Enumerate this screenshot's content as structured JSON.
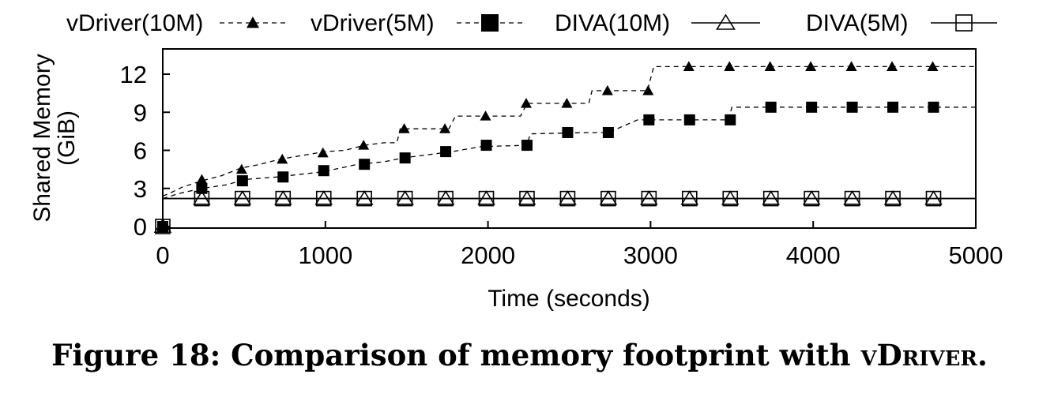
{
  "caption": {
    "label": "Figure 18:",
    "text": "Comparison of memory footprint with",
    "system": "vDriver",
    "end": "."
  },
  "chart_data": {
    "type": "line",
    "title": "",
    "xlabel": "Time (seconds)",
    "ylabel_line1": "Shared Memory",
    "ylabel_line2": "(GiB)",
    "xlim": [
      -20,
      5000
    ],
    "ylim": [
      0,
      13.8
    ],
    "xticks": [
      0,
      1000,
      2000,
      3000,
      4000,
      5000
    ],
    "xtick_labels": [
      "0",
      "1000",
      "2000",
      "3000",
      "4000",
      "5000"
    ],
    "yticks": [
      0,
      3,
      6,
      9,
      12
    ],
    "ytick_labels": [
      "0",
      "3",
      "6",
      "9",
      "12"
    ],
    "grid": false,
    "legend_position": "top, outside",
    "series": [
      {
        "name": "vDriver(10M)",
        "marker": "filled-triangle",
        "line": "dashed",
        "line_points": [
          [
            0,
            2.4
          ],
          [
            40,
            2.6
          ],
          [
            120,
            3.1
          ],
          [
            240,
            3.6
          ],
          [
            360,
            4.0
          ],
          [
            480,
            4.6
          ],
          [
            600,
            4.9
          ],
          [
            720,
            5.3
          ],
          [
            860,
            5.6
          ],
          [
            1000,
            5.9
          ],
          [
            1120,
            6.0
          ],
          [
            1240,
            6.4
          ],
          [
            1360,
            6.6
          ],
          [
            1440,
            6.6
          ],
          [
            1460,
            7.7
          ],
          [
            1760,
            7.7
          ],
          [
            1800,
            8.7
          ],
          [
            2200,
            8.7
          ],
          [
            2240,
            9.7
          ],
          [
            2620,
            9.7
          ],
          [
            2640,
            10.7
          ],
          [
            2980,
            10.7
          ],
          [
            3020,
            12.6
          ],
          [
            5000,
            12.6
          ]
        ],
        "marker_points": [
          [
            0,
            0
          ],
          [
            240,
            3.7
          ],
          [
            485,
            4.5
          ],
          [
            735,
            5.3
          ],
          [
            985,
            5.8
          ],
          [
            1235,
            6.4
          ],
          [
            1485,
            7.7
          ],
          [
            1735,
            7.7
          ],
          [
            1985,
            8.7
          ],
          [
            2235,
            9.7
          ],
          [
            2485,
            9.7
          ],
          [
            2735,
            10.7
          ],
          [
            2985,
            10.7
          ],
          [
            3235,
            12.6
          ],
          [
            3485,
            12.6
          ],
          [
            3735,
            12.6
          ],
          [
            3985,
            12.6
          ],
          [
            4235,
            12.6
          ],
          [
            4485,
            12.6
          ],
          [
            4735,
            12.6
          ]
        ]
      },
      {
        "name": "vDriver(5M)",
        "marker": "filled-square",
        "line": "dashed",
        "line_points": [
          [
            0,
            2.2
          ],
          [
            100,
            2.6
          ],
          [
            240,
            3.0
          ],
          [
            400,
            3.3
          ],
          [
            500,
            3.7
          ],
          [
            700,
            3.9
          ],
          [
            980,
            4.3
          ],
          [
            1200,
            4.9
          ],
          [
            1360,
            5.1
          ],
          [
            1480,
            5.4
          ],
          [
            1600,
            5.6
          ],
          [
            1780,
            5.9
          ],
          [
            1960,
            6.3
          ],
          [
            2240,
            6.4
          ],
          [
            2260,
            7.3
          ],
          [
            2600,
            7.4
          ],
          [
            2740,
            7.4
          ],
          [
            2920,
            8.4
          ],
          [
            3480,
            8.4
          ],
          [
            3500,
            9.4
          ],
          [
            5000,
            9.4
          ]
        ],
        "marker_points": [
          [
            0,
            0
          ],
          [
            240,
            3.0
          ],
          [
            490,
            3.6
          ],
          [
            740,
            3.9
          ],
          [
            990,
            4.4
          ],
          [
            1240,
            4.9
          ],
          [
            1490,
            5.4
          ],
          [
            1740,
            5.9
          ],
          [
            1990,
            6.4
          ],
          [
            2240,
            6.4
          ],
          [
            2490,
            7.4
          ],
          [
            2740,
            7.4
          ],
          [
            2990,
            8.4
          ],
          [
            3240,
            8.4
          ],
          [
            3490,
            8.4
          ],
          [
            3740,
            9.4
          ],
          [
            3990,
            9.4
          ],
          [
            4240,
            9.4
          ],
          [
            4490,
            9.4
          ],
          [
            4740,
            9.4
          ]
        ]
      },
      {
        "name": "DIVA(10M)",
        "marker": "open-triangle",
        "line": "solid",
        "line_points": [
          [
            0,
            0
          ],
          [
            0,
            2.2
          ],
          [
            5000,
            2.2
          ]
        ],
        "marker_points": [
          [
            0,
            0
          ],
          [
            240,
            2.2
          ],
          [
            490,
            2.2
          ],
          [
            740,
            2.2
          ],
          [
            990,
            2.2
          ],
          [
            1240,
            2.2
          ],
          [
            1490,
            2.2
          ],
          [
            1740,
            2.2
          ],
          [
            1990,
            2.2
          ],
          [
            2240,
            2.2
          ],
          [
            2490,
            2.2
          ],
          [
            2740,
            2.2
          ],
          [
            2990,
            2.2
          ],
          [
            3240,
            2.2
          ],
          [
            3490,
            2.2
          ],
          [
            3740,
            2.2
          ],
          [
            3990,
            2.2
          ],
          [
            4240,
            2.2
          ],
          [
            4490,
            2.2
          ],
          [
            4740,
            2.2
          ]
        ]
      },
      {
        "name": "DIVA(5M)",
        "marker": "open-square",
        "line": "solid",
        "line_points": [
          [
            0,
            0
          ],
          [
            0,
            2.2
          ],
          [
            5000,
            2.2
          ]
        ],
        "marker_points": [
          [
            0,
            0
          ],
          [
            240,
            2.2
          ],
          [
            490,
            2.2
          ],
          [
            740,
            2.2
          ],
          [
            990,
            2.2
          ],
          [
            1240,
            2.2
          ],
          [
            1490,
            2.2
          ],
          [
            1740,
            2.2
          ],
          [
            1990,
            2.2
          ],
          [
            2240,
            2.2
          ],
          [
            2490,
            2.2
          ],
          [
            2740,
            2.2
          ],
          [
            2990,
            2.2
          ],
          [
            3240,
            2.2
          ],
          [
            3490,
            2.2
          ],
          [
            3740,
            2.2
          ],
          [
            3990,
            2.2
          ],
          [
            4240,
            2.2
          ],
          [
            4490,
            2.2
          ],
          [
            4740,
            2.2
          ]
        ]
      }
    ]
  }
}
